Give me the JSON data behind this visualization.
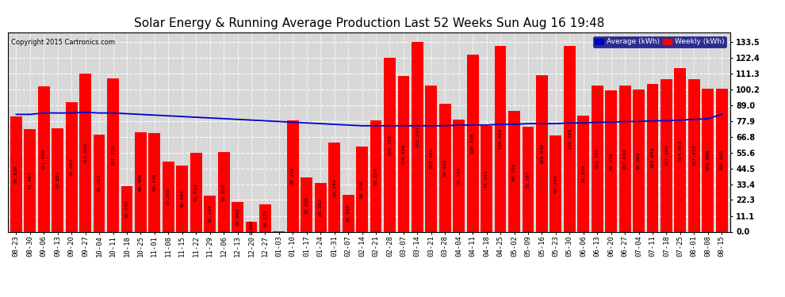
{
  "title": "Solar Energy & Running Average Production Last 52 Weeks Sun Aug 16 19:48",
  "copyright": "Copyright 2015 Cartronics.com",
  "legend_labels": [
    "Average (kWh)",
    "Weekly (kWh)"
  ],
  "legend_colors": [
    "#0000cc",
    "#ff0000"
  ],
  "bar_color": "#ff0000",
  "line_color": "#0000cc",
  "background_color": "#ffffff",
  "plot_bg_color": "#d8d8d8",
  "grid_color": "#ffffff",
  "categories": [
    "08-23",
    "08-30",
    "09-06",
    "09-13",
    "09-20",
    "09-27",
    "10-04",
    "10-11",
    "10-18",
    "10-25",
    "11-01",
    "11-08",
    "11-15",
    "11-22",
    "11-29",
    "12-06",
    "12-13",
    "12-20",
    "12-27",
    "01-03",
    "01-10",
    "01-17",
    "01-24",
    "01-31",
    "02-07",
    "02-14",
    "02-21",
    "02-28",
    "03-07",
    "03-14",
    "03-21",
    "03-28",
    "04-04",
    "04-11",
    "04-18",
    "04-25",
    "05-02",
    "05-09",
    "05-16",
    "05-23",
    "05-30",
    "06-06",
    "06-13",
    "06-20",
    "06-27",
    "07-04",
    "07-11",
    "07-18",
    "07-25",
    "08-01",
    "08-08",
    "08-15"
  ],
  "cat_years": [
    "08",
    "08",
    "09",
    "09",
    "09",
    "09",
    "10",
    "10",
    "10",
    "10",
    "11",
    "11",
    "11",
    "11",
    "11",
    "12",
    "12",
    "12",
    "12",
    "01",
    "01",
    "01",
    "01",
    "01",
    "02",
    "02",
    "02",
    "02",
    "03",
    "03",
    "03",
    "03",
    "04",
    "04",
    "04",
    "04",
    "05",
    "05",
    "05",
    "05",
    "05",
    "06",
    "06",
    "06",
    "06",
    "07",
    "07",
    "07",
    "07",
    "08",
    "08",
    "08"
  ],
  "weekly_values": [
    80.826,
    72.404,
    101.998,
    72.884,
    91.064,
    111.052,
    68.352,
    107.77,
    32.246,
    69.906,
    69.47,
    49.556,
    46.564,
    55.512,
    25.144,
    55.828,
    21.052,
    6.808,
    19.178,
    0.03,
    78.418,
    38.026,
    34.292,
    62.544,
    26.036,
    60.176,
    78.224,
    122.152,
    109.35,
    133.542,
    102.904,
    89.912,
    78.78,
    124.328,
    74.144,
    130.904,
    84.796,
    73.784,
    109.936,
    67.744,
    130.588,
    81.878,
    102.786,
    99.318,
    102.634,
    99.968,
    103.894,
    107.19,
    114.912,
    107.472,
    100.808,
    100.808
  ],
  "avg_values": [
    82.5,
    82.5,
    83.5,
    83.5,
    83.5,
    84.0,
    83.5,
    83.5,
    83.0,
    82.5,
    82.0,
    81.5,
    81.0,
    80.5,
    80.0,
    79.5,
    79.0,
    78.5,
    78.0,
    77.5,
    77.0,
    76.5,
    76.0,
    75.5,
    75.0,
    74.5,
    74.5,
    74.5,
    74.5,
    74.5,
    74.5,
    74.5,
    75.0,
    75.0,
    75.0,
    75.5,
    75.5,
    76.0,
    76.0,
    76.0,
    76.5,
    76.5,
    77.0,
    77.0,
    77.5,
    77.5,
    78.0,
    78.0,
    78.5,
    79.0,
    79.5,
    82.5
  ],
  "yticks": [
    0.0,
    11.1,
    22.3,
    33.4,
    44.5,
    55.6,
    66.8,
    77.9,
    89.0,
    100.2,
    111.3,
    122.4,
    133.5
  ],
  "ylim": [
    0,
    140
  ],
  "title_fontsize": 11,
  "tick_fontsize": 6.5,
  "label_fontsize": 4.5,
  "bar_width": 0.85
}
